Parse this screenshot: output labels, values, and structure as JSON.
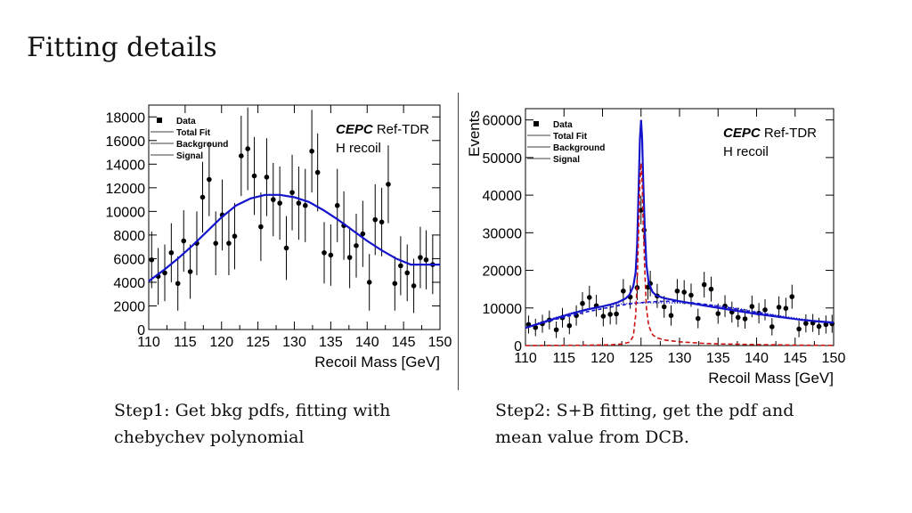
{
  "slide": {
    "title": "Fitting details",
    "caption_left_1": "Step1: Get bkg pdfs, fitting with",
    "caption_left_2": "chebychev polynomial",
    "caption_right_1": "Step2: S+B fitting, get the pdf  and",
    "caption_right_2": "mean value from DCB."
  },
  "chart_data": [
    {
      "type": "scatter",
      "title": "",
      "xlabel": "Recoil Mass [GeV]",
      "ylabel": "",
      "xlim": [
        110,
        150
      ],
      "ylim": [
        0,
        19000
      ],
      "x_ticks": [
        110,
        115,
        120,
        125,
        130,
        135,
        140,
        145,
        150
      ],
      "y_ticks": [
        0,
        2000,
        4000,
        6000,
        8000,
        10000,
        12000,
        14000,
        16000,
        18000
      ],
      "label_bold": "CEPC",
      "label_rest": "Ref-TDR",
      "label_line2": "H recoil",
      "legend": {
        "placement": "top-left",
        "entries": [
          "Data",
          "Total Fit",
          "Background",
          "Signal"
        ]
      },
      "series": [
        {
          "name": "Data",
          "kind": "points_with_errors",
          "color": "#000000",
          "x": [
            110.4,
            111.3,
            112.2,
            113.1,
            114.0,
            114.8,
            115.7,
            116.6,
            117.4,
            118.3,
            119.2,
            120.1,
            121.0,
            121.8,
            122.7,
            123.6,
            124.5,
            125.4,
            126.2,
            127.1,
            128.0,
            128.9,
            129.7,
            130.6,
            131.5,
            132.4,
            133.2,
            134.1,
            135.0,
            135.9,
            136.8,
            137.6,
            138.5,
            139.4,
            140.3,
            141.1,
            142.0,
            142.9,
            143.8,
            144.6,
            145.5,
            146.4,
            147.3,
            148.1,
            149.0
          ],
          "y": [
            5900,
            4500,
            4800,
            6500,
            3900,
            7500,
            4900,
            7300,
            11200,
            12700,
            7300,
            9700,
            7300,
            7900,
            14700,
            15300,
            13000,
            8700,
            12900,
            11000,
            10700,
            6900,
            11600,
            10700,
            10500,
            15100,
            13300,
            6500,
            6300,
            10500,
            8800,
            6100,
            7100,
            8100,
            4000,
            9300,
            9100,
            12300,
            3900,
            5400,
            4800,
            3700,
            6100,
            5900,
            5500
          ],
          "err": [
            2400,
            2400,
            2400,
            2500,
            2300,
            2600,
            2300,
            2700,
            3000,
            3100,
            2700,
            3000,
            2700,
            2800,
            3400,
            3500,
            3300,
            2900,
            3300,
            3100,
            3100,
            2700,
            3200,
            3100,
            3100,
            3500,
            3300,
            2600,
            2600,
            3100,
            2900,
            2600,
            2700,
            2800,
            2400,
            3000,
            2900,
            3300,
            2300,
            2500,
            2400,
            2300,
            2600,
            2500,
            2500
          ]
        },
        {
          "name": "Total Fit",
          "kind": "line",
          "color": "#1414cc",
          "x": [
            110,
            112,
            114,
            116,
            118,
            120,
            122,
            124,
            126,
            128,
            130,
            132,
            134,
            136,
            138,
            140,
            142,
            144,
            146,
            148,
            150
          ],
          "y": [
            4100,
            5000,
            6000,
            7100,
            8300,
            9500,
            10500,
            11100,
            11400,
            11400,
            11200,
            10800,
            10100,
            9300,
            8400,
            7500,
            6700,
            6000,
            5500,
            5500,
            5500
          ]
        }
      ]
    },
    {
      "type": "scatter",
      "title": "",
      "xlabel": "Recoil Mass [GeV]",
      "ylabel": "Events",
      "xlim": [
        110,
        150
      ],
      "ylim": [
        0,
        63000
      ],
      "x_ticks": [
        110,
        115,
        120,
        125,
        130,
        135,
        140,
        145,
        150
      ],
      "y_ticks": [
        0,
        10000,
        20000,
        30000,
        40000,
        50000,
        60000
      ],
      "label_bold": "CEPC",
      "label_rest": "Ref-TDR",
      "label_line2": "H recoil",
      "legend": {
        "placement": "top-left",
        "entries": [
          "Data",
          "Total Fit",
          "Background",
          "Signal"
        ]
      },
      "series": [
        {
          "name": "Data",
          "kind": "points_with_errors",
          "color": "#000000",
          "x": [
            110.4,
            111.3,
            112.2,
            113.1,
            114.0,
            114.8,
            115.7,
            116.6,
            117.4,
            118.3,
            119.2,
            120.1,
            121.0,
            121.8,
            122.7,
            123.6,
            124.5,
            125.0,
            125.4,
            125.9,
            126.2,
            127.1,
            128.0,
            128.9,
            129.7,
            130.6,
            131.5,
            132.4,
            133.2,
            134.1,
            135.0,
            135.9,
            136.8,
            137.6,
            138.5,
            139.4,
            140.3,
            141.1,
            142.0,
            142.9,
            143.8,
            144.6,
            145.5,
            146.4,
            147.3,
            148.1,
            149.0,
            149.8
          ],
          "y": [
            5600,
            4800,
            5800,
            6800,
            4200,
            7400,
            5300,
            8000,
            11200,
            12800,
            10600,
            7800,
            8300,
            8400,
            14500,
            12900,
            15400,
            36000,
            30700,
            15500,
            16500,
            13200,
            10300,
            8000,
            14500,
            14200,
            13400,
            7200,
            16200,
            15000,
            8500,
            10500,
            8900,
            7500,
            7100,
            10400,
            8600,
            9500,
            5000,
            10200,
            9900,
            13000,
            4400,
            5900,
            6000,
            5100,
            5600,
            5800
          ],
          "err": [
            2400,
            2300,
            2400,
            2500,
            2200,
            2600,
            2300,
            2700,
            3000,
            3100,
            2900,
            2700,
            2700,
            2800,
            3200,
            3100,
            3300,
            3800,
            3600,
            3300,
            3400,
            3200,
            2900,
            2700,
            3200,
            3200,
            3100,
            2600,
            3400,
            3300,
            2700,
            2900,
            2800,
            2600,
            2600,
            2900,
            2700,
            2800,
            2300,
            2900,
            2800,
            3200,
            2200,
            2400,
            2400,
            2300,
            2400,
            2400
          ]
        },
        {
          "name": "Total Fit",
          "kind": "line",
          "color": "#1414cc",
          "x": [
            110,
            112,
            114,
            116,
            118,
            120,
            121,
            122,
            123,
            123.5,
            124,
            124.3,
            124.5,
            124.7,
            124.85,
            125,
            125.15,
            125.3,
            125.5,
            125.7,
            126,
            126.5,
            127,
            128,
            130,
            133,
            136,
            140,
            143,
            146,
            150
          ],
          "y": [
            4700,
            6000,
            7300,
            8500,
            9600,
            10400,
            10900,
            11500,
            12500,
            13500,
            15800,
            19500,
            27000,
            43000,
            55000,
            60000,
            55000,
            43000,
            30000,
            21500,
            16700,
            14200,
            13300,
            12600,
            11800,
            10700,
            9700,
            8400,
            7600,
            6800,
            6100
          ]
        },
        {
          "name": "Background",
          "kind": "line",
          "color": "#1414cc",
          "dash": "4,3",
          "x": [
            110,
            112,
            114,
            116,
            118,
            120,
            122,
            124,
            126,
            128,
            130,
            132,
            134,
            136,
            138,
            140,
            142,
            144,
            146,
            148,
            150
          ],
          "y": [
            4700,
            5900,
            7000,
            8000,
            9000,
            9800,
            10600,
            11200,
            11600,
            11800,
            11700,
            11300,
            10800,
            10200,
            9500,
            8800,
            8100,
            7400,
            6800,
            6300,
            6000
          ]
        },
        {
          "name": "Background",
          "kind": "line",
          "color": "#1414cc",
          "dash": "1,2",
          "x": [
            110,
            112,
            114,
            116,
            118,
            120,
            122,
            124,
            126,
            128,
            130,
            132,
            134,
            136,
            138,
            140,
            142,
            144,
            146,
            148,
            150
          ],
          "y": [
            4700,
            6200,
            7500,
            8700,
            9700,
            10500,
            11000,
            11300,
            11400,
            11400,
            11300,
            11100,
            10800,
            10300,
            9700,
            9000,
            8300,
            7600,
            7000,
            6400,
            6000
          ]
        },
        {
          "name": "Signal",
          "kind": "line",
          "color": "#cc1111",
          "dash": "5,3",
          "x": [
            110,
            114,
            118,
            121,
            122.5,
            123.5,
            124,
            124.3,
            124.5,
            124.7,
            124.85,
            125,
            125.15,
            125.3,
            125.5,
            125.7,
            126,
            126.5,
            127,
            128,
            130,
            133,
            136,
            140,
            145,
            150
          ],
          "y": [
            0,
            50,
            100,
            200,
            400,
            900,
            2500,
            8000,
            17000,
            32000,
            43500,
            48500,
            43500,
            32000,
            19000,
            10000,
            5200,
            2900,
            2100,
            1500,
            1000,
            600,
            400,
            250,
            120,
            50
          ]
        }
      ]
    }
  ]
}
